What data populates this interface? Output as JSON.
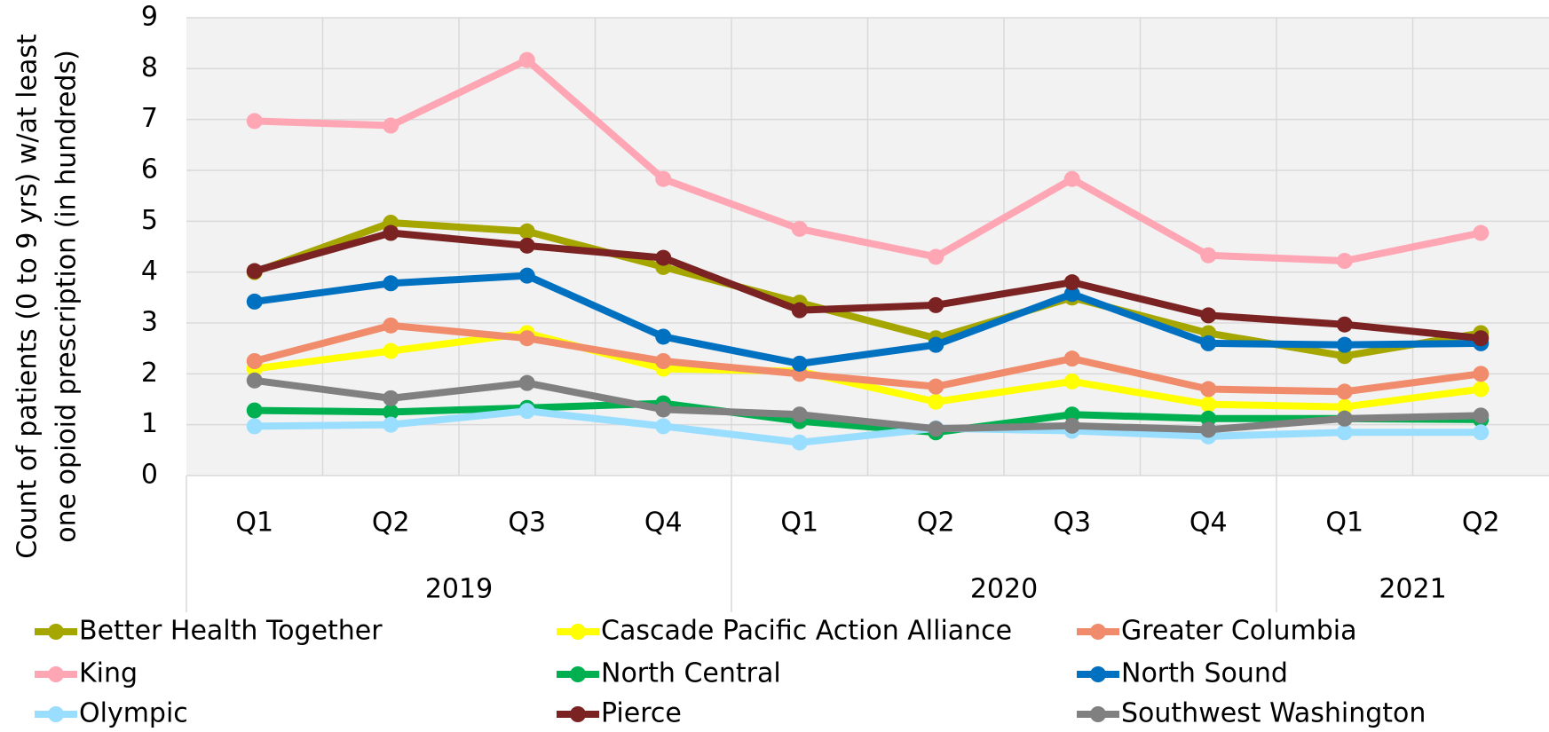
{
  "chart_data": {
    "type": "line",
    "y_label_lines": [
      "Count of patients (0 to 9 yrs) w/at least",
      "one opioid prescription (in hundreds)"
    ],
    "category_groups": [
      {
        "label": "2019",
        "categories": [
          "Q1",
          "Q2",
          "Q3",
          "Q4"
        ]
      },
      {
        "label": "2020",
        "categories": [
          "Q1",
          "Q2",
          "Q3",
          "Q4"
        ]
      },
      {
        "label": "2021",
        "categories": [
          "Q1",
          "Q2"
        ]
      }
    ],
    "ylim": [
      0,
      9
    ],
    "yticks": [
      0,
      1,
      2,
      3,
      4,
      5,
      6,
      7,
      8,
      9
    ],
    "grid": true,
    "series": [
      {
        "name": "Better Health Together",
        "color": "#a6a600",
        "values": [
          4.0,
          4.97,
          4.8,
          4.1,
          3.4,
          2.7,
          3.5,
          2.8,
          2.35,
          2.8
        ]
      },
      {
        "name": "Cascade Pacific Action Alliance",
        "color": "#ffff00",
        "values": [
          2.1,
          2.45,
          2.8,
          2.1,
          2.05,
          1.45,
          1.85,
          1.4,
          1.35,
          1.7
        ]
      },
      {
        "name": "Greater Columbia",
        "color": "#f08c6c",
        "values": [
          2.25,
          2.95,
          2.7,
          2.25,
          2.0,
          1.75,
          2.3,
          1.7,
          1.65,
          2.0
        ]
      },
      {
        "name": "King",
        "color": "#ffa6b4",
        "values": [
          6.97,
          6.88,
          8.17,
          5.83,
          4.85,
          4.3,
          5.83,
          4.33,
          4.22,
          4.77
        ]
      },
      {
        "name": "North Central",
        "color": "#00b050",
        "values": [
          1.28,
          1.25,
          1.33,
          1.42,
          1.07,
          0.85,
          1.2,
          1.12,
          1.12,
          1.1
        ]
      },
      {
        "name": "North Sound",
        "color": "#0070c0",
        "values": [
          3.42,
          3.78,
          3.93,
          2.73,
          2.2,
          2.57,
          3.57,
          2.6,
          2.57,
          2.6
        ]
      },
      {
        "name": "Olympic",
        "color": "#99ddff",
        "values": [
          0.97,
          1.0,
          1.27,
          0.97,
          0.65,
          0.93,
          0.88,
          0.77,
          0.85,
          0.85
        ]
      },
      {
        "name": "Pierce",
        "color": "#7b2323",
        "values": [
          4.02,
          4.77,
          4.52,
          4.28,
          3.25,
          3.35,
          3.8,
          3.15,
          2.97,
          2.7
        ]
      },
      {
        "name": "Southwest Washington",
        "color": "#808080",
        "values": [
          1.87,
          1.52,
          1.82,
          1.3,
          1.2,
          0.92,
          0.98,
          0.9,
          1.12,
          1.18
        ]
      }
    ]
  }
}
